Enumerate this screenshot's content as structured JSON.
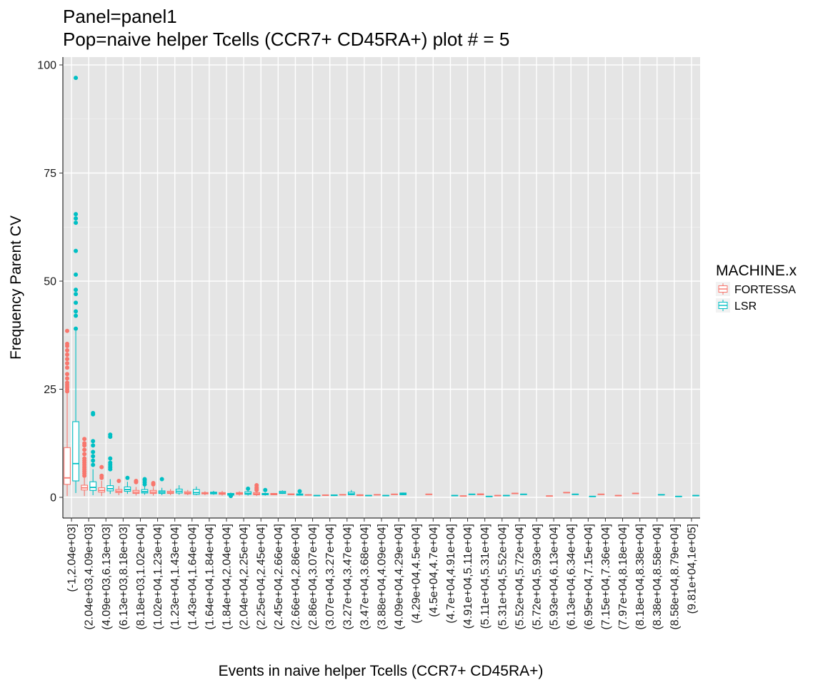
{
  "chart_data": {
    "type": "box",
    "title_line1": "Panel=panel1",
    "title_line2": "Pop=naive helper Tcells (CCR7+ CD45RA+) plot # = 5",
    "xlabel": "Events in naive helper Tcells (CCR7+ CD45RA+)",
    "ylabel": "Frequency Parent CV",
    "ylim": [
      -4.5,
      102
    ],
    "yticks": [
      0,
      25,
      50,
      75,
      100
    ],
    "grid": true,
    "legend": {
      "title": "MACHINE.x",
      "position": "right",
      "entries": [
        {
          "name": "FORTESSA",
          "color": "#F8766D"
        },
        {
          "name": "LSR",
          "color": "#00BFC4"
        }
      ]
    },
    "categories": [
      "(-1,2.04e+03]",
      "(2.04e+03,4.09e+03]",
      "(4.09e+03,6.13e+03]",
      "(6.13e+03,8.18e+03]",
      "(8.18e+03,1.02e+04]",
      "(1.02e+04,1.23e+04]",
      "(1.23e+04,1.43e+04]",
      "(1.43e+04,1.64e+04]",
      "(1.64e+04,1.84e+04]",
      "(1.84e+04,2.04e+04]",
      "(2.04e+04,2.25e+04]",
      "(2.25e+04,2.45e+04]",
      "(2.45e+04,2.66e+04]",
      "(2.66e+04,2.86e+04]",
      "(2.86e+04,3.07e+04]",
      "(3.07e+04,3.27e+04]",
      "(3.27e+04,3.47e+04]",
      "(3.47e+04,3.68e+04]",
      "(3.88e+04,4.09e+04]",
      "(4.09e+04,4.29e+04]",
      "(4.29e+04,4.5e+04]",
      "(4.5e+04,4.7e+04]",
      "(4.7e+04,4.91e+04]",
      "(4.91e+04,5.11e+04]",
      "(5.11e+04,5.31e+04]",
      "(5.31e+04,5.52e+04]",
      "(5.52e+04,5.72e+04]",
      "(5.72e+04,5.93e+04]",
      "(5.93e+04,6.13e+04]",
      "(6.13e+04,6.34e+04]",
      "(6.95e+04,7.15e+04]",
      "(7.15e+04,7.36e+04]",
      "(7.97e+04,8.18e+04]",
      "(8.18e+04,8.38e+04]",
      "(8.38e+04,8.58e+04]",
      "(8.58e+04,8.79e+04]",
      "(9.81e+04,1e+05]"
    ],
    "boxes": [
      {
        "cat": 0,
        "series": "FORTESSA",
        "min": 0.3,
        "q1": 3.0,
        "median": 4.5,
        "q3": 11.5,
        "max": 24.0,
        "outliers": [
          24.5,
          25,
          25.5,
          26,
          26.5,
          27.5,
          28.5,
          30,
          31,
          32,
          33,
          34,
          35,
          35.5,
          38.5
        ]
      },
      {
        "cat": 0,
        "series": "LSR",
        "min": 1.0,
        "q1": 3.8,
        "median": 7.8,
        "q3": 17.5,
        "max": 38.5,
        "outliers": [
          39,
          42,
          43,
          45,
          47,
          48,
          51.5,
          57,
          63.5,
          64.5,
          65.5,
          97
        ]
      },
      {
        "cat": 1,
        "series": "FORTESSA",
        "min": 0.3,
        "q1": 1.7,
        "median": 2.2,
        "q3": 2.8,
        "max": 4.5,
        "outliers": [
          5,
          5.5,
          6,
          6.5,
          7,
          7.5,
          8,
          8.5,
          9,
          10,
          11,
          12,
          12.5,
          13.5
        ]
      },
      {
        "cat": 1,
        "series": "LSR",
        "min": 0.5,
        "q1": 1.6,
        "median": 2.3,
        "q3": 3.6,
        "max": 6.5,
        "outliers": [
          7.5,
          8.5,
          9.5,
          10.5,
          12,
          13,
          19.2,
          19.5
        ]
      },
      {
        "cat": 2,
        "series": "FORTESSA",
        "min": 0.3,
        "q1": 1.2,
        "median": 1.6,
        "q3": 2.2,
        "max": 3.8,
        "outliers": [
          4.5,
          5,
          7
        ]
      },
      {
        "cat": 2,
        "series": "LSR",
        "min": 0.8,
        "q1": 1.5,
        "median": 2.0,
        "q3": 2.7,
        "max": 4.2,
        "outliers": [
          6.5,
          7,
          7.5,
          8,
          9,
          14,
          14.5
        ]
      },
      {
        "cat": 3,
        "series": "FORTESSA",
        "min": 0.5,
        "q1": 1.1,
        "median": 1.4,
        "q3": 1.8,
        "max": 2.6,
        "outliers": [
          3.8
        ]
      },
      {
        "cat": 3,
        "series": "LSR",
        "min": 0.8,
        "q1": 1.4,
        "median": 1.8,
        "q3": 2.4,
        "max": 3.6,
        "outliers": [
          4.5
        ]
      },
      {
        "cat": 4,
        "series": "FORTESSA",
        "min": 0.4,
        "q1": 0.9,
        "median": 1.2,
        "q3": 1.6,
        "max": 2.4,
        "outliers": [
          3.5,
          3.8
        ]
      },
      {
        "cat": 4,
        "series": "LSR",
        "min": 0.6,
        "q1": 1.0,
        "median": 1.3,
        "q3": 1.8,
        "max": 2.6,
        "outliers": [
          3,
          3.5,
          4,
          4.2
        ]
      },
      {
        "cat": 5,
        "series": "FORTESSA",
        "min": 0.4,
        "q1": 0.9,
        "median": 1.2,
        "q3": 1.6,
        "max": 2.4,
        "outliers": [
          3.0,
          3.3
        ]
      },
      {
        "cat": 5,
        "series": "LSR",
        "min": 0.5,
        "q1": 0.9,
        "median": 1.2,
        "q3": 1.5,
        "max": 2.2,
        "outliers": [
          4.2
        ]
      },
      {
        "cat": 6,
        "series": "FORTESSA",
        "min": 0.5,
        "q1": 0.9,
        "median": 1.1,
        "q3": 1.4,
        "max": 1.9,
        "outliers": []
      },
      {
        "cat": 6,
        "series": "LSR",
        "min": 0.6,
        "q1": 1.0,
        "median": 1.4,
        "q3": 1.9,
        "max": 2.8,
        "outliers": []
      },
      {
        "cat": 7,
        "series": "FORTESSA",
        "min": 0.5,
        "q1": 0.8,
        "median": 1.0,
        "q3": 1.3,
        "max": 1.7,
        "outliers": []
      },
      {
        "cat": 7,
        "series": "LSR",
        "min": 0.5,
        "q1": 0.7,
        "median": 1.1,
        "q3": 1.8,
        "max": 2.5,
        "outliers": []
      },
      {
        "cat": 8,
        "series": "FORTESSA",
        "min": 0.5,
        "q1": 0.8,
        "median": 0.9,
        "q3": 1.1,
        "max": 1.4,
        "outliers": []
      },
      {
        "cat": 8,
        "series": "LSR",
        "min": 0.6,
        "q1": 0.8,
        "median": 1.0,
        "q3": 1.2,
        "max": 1.5,
        "outliers": []
      },
      {
        "cat": 9,
        "series": "FORTESSA",
        "min": 0.4,
        "q1": 0.7,
        "median": 0.9,
        "q3": 1.1,
        "max": 1.5,
        "outliers": []
      },
      {
        "cat": 9,
        "series": "LSR",
        "min": 0.3,
        "q1": 0.5,
        "median": 0.7,
        "q3": 0.9,
        "max": 1.1,
        "outliers": [
          0.3
        ]
      },
      {
        "cat": 10,
        "series": "FORTESSA",
        "min": 0.4,
        "q1": 0.7,
        "median": 0.9,
        "q3": 1.1,
        "max": 1.4,
        "outliers": []
      },
      {
        "cat": 10,
        "series": "LSR",
        "min": 0.4,
        "q1": 0.7,
        "median": 0.9,
        "q3": 1.3,
        "max": 1.8,
        "outliers": [
          2.0
        ]
      },
      {
        "cat": 11,
        "series": "FORTESSA",
        "min": 0.3,
        "q1": 0.6,
        "median": 0.8,
        "q3": 1.1,
        "max": 1.4,
        "outliers": [
          1.7,
          2.0,
          2.3,
          2.8
        ]
      },
      {
        "cat": 11,
        "series": "LSR",
        "min": 0.4,
        "q1": 0.6,
        "median": 0.7,
        "q3": 0.9,
        "max": 1.1,
        "outliers": [
          1.7
        ]
      },
      {
        "cat": 12,
        "series": "FORTESSA",
        "min": 0.5,
        "q1": 0.6,
        "median": 0.7,
        "q3": 0.9,
        "max": 1.0,
        "outliers": []
      },
      {
        "cat": 12,
        "series": "LSR",
        "min": 0.8,
        "q1": 0.9,
        "median": 1.1,
        "q3": 1.4,
        "max": 1.6,
        "outliers": []
      },
      {
        "cat": 13,
        "series": "FORTESSA",
        "min": 0.5,
        "q1": 0.6,
        "median": 0.7,
        "q3": 0.8,
        "max": 0.9,
        "outliers": []
      },
      {
        "cat": 13,
        "series": "LSR",
        "min": 0.4,
        "q1": 0.5,
        "median": 0.6,
        "q3": 0.8,
        "max": 1.0,
        "outliers": [
          1.4
        ]
      },
      {
        "cat": 14,
        "series": "FORTESSA",
        "min": 0.4,
        "q1": 0.5,
        "median": 0.55,
        "q3": 0.6,
        "max": 0.7,
        "outliers": []
      },
      {
        "cat": 14,
        "series": "LSR",
        "min": 0.3,
        "q1": 0.35,
        "median": 0.4,
        "q3": 0.45,
        "max": 0.5,
        "outliers": []
      },
      {
        "cat": 15,
        "series": "FORTESSA",
        "min": 0.4,
        "q1": 0.45,
        "median": 0.5,
        "q3": 0.55,
        "max": 0.6,
        "outliers": []
      },
      {
        "cat": 15,
        "series": "LSR",
        "min": 0.3,
        "q1": 0.4,
        "median": 0.5,
        "q3": 0.55,
        "max": 0.6,
        "outliers": []
      },
      {
        "cat": 16,
        "series": "FORTESSA",
        "min": 0.5,
        "q1": 0.55,
        "median": 0.6,
        "q3": 0.65,
        "max": 0.7,
        "outliers": []
      },
      {
        "cat": 16,
        "series": "LSR",
        "min": 0.5,
        "q1": 0.6,
        "median": 0.8,
        "q3": 1.2,
        "max": 1.7,
        "outliers": []
      },
      {
        "cat": 17,
        "series": "FORTESSA",
        "min": 0.3,
        "q1": 0.4,
        "median": 0.5,
        "q3": 0.6,
        "max": 0.7,
        "outliers": []
      },
      {
        "cat": 17,
        "series": "LSR",
        "min": 0.3,
        "q1": 0.35,
        "median": 0.4,
        "q3": 0.45,
        "max": 0.5,
        "outliers": []
      },
      {
        "cat": 18,
        "series": "FORTESSA",
        "min": 0.5,
        "q1": 0.55,
        "median": 0.6,
        "q3": 0.65,
        "max": 0.7,
        "outliers": []
      },
      {
        "cat": 18,
        "series": "LSR",
        "min": 0.3,
        "q1": 0.35,
        "median": 0.4,
        "q3": 0.45,
        "max": 0.5,
        "outliers": []
      },
      {
        "cat": 19,
        "series": "FORTESSA",
        "min": 0.6,
        "q1": 0.65,
        "median": 0.7,
        "q3": 0.75,
        "max": 0.8,
        "outliers": []
      },
      {
        "cat": 19,
        "series": "LSR",
        "min": 0.5,
        "q1": 0.6,
        "median": 0.8,
        "q3": 1.0,
        "max": 1.1,
        "outliers": []
      },
      {
        "cat": 21,
        "series": "FORTESSA",
        "min": 0.6,
        "q1": 0.65,
        "median": 0.7,
        "q3": 0.75,
        "max": 0.8,
        "outliers": []
      },
      {
        "cat": 22,
        "series": "LSR",
        "min": 0.3,
        "q1": 0.35,
        "median": 0.4,
        "q3": 0.45,
        "max": 0.5,
        "outliers": []
      },
      {
        "cat": 23,
        "series": "FORTESSA",
        "min": 0.2,
        "q1": 0.25,
        "median": 0.3,
        "q3": 0.35,
        "max": 0.4,
        "outliers": []
      },
      {
        "cat": 23,
        "series": "LSR",
        "min": 0.6,
        "q1": 0.65,
        "median": 0.7,
        "q3": 0.75,
        "max": 0.8,
        "outliers": []
      },
      {
        "cat": 24,
        "series": "FORTESSA",
        "min": 0.5,
        "q1": 0.6,
        "median": 0.7,
        "q3": 0.8,
        "max": 0.9,
        "outliers": []
      },
      {
        "cat": 24,
        "series": "LSR",
        "min": 0.1,
        "q1": 0.15,
        "median": 0.2,
        "q3": 0.25,
        "max": 0.3,
        "outliers": []
      },
      {
        "cat": 25,
        "series": "FORTESSA",
        "min": 0.3,
        "q1": 0.35,
        "median": 0.4,
        "q3": 0.45,
        "max": 0.5,
        "outliers": []
      },
      {
        "cat": 25,
        "series": "LSR",
        "min": 0.3,
        "q1": 0.35,
        "median": 0.4,
        "q3": 0.45,
        "max": 0.5,
        "outliers": []
      },
      {
        "cat": 26,
        "series": "FORTESSA",
        "min": 0.8,
        "q1": 0.85,
        "median": 0.9,
        "q3": 0.95,
        "max": 1.0,
        "outliers": []
      },
      {
        "cat": 26,
        "series": "LSR",
        "min": 0.6,
        "q1": 0.65,
        "median": 0.7,
        "q3": 0.75,
        "max": 0.8,
        "outliers": []
      },
      {
        "cat": 28,
        "series": "FORTESSA",
        "min": 0.2,
        "q1": 0.25,
        "median": 0.3,
        "q3": 0.35,
        "max": 0.4,
        "outliers": []
      },
      {
        "cat": 29,
        "series": "FORTESSA",
        "min": 1.0,
        "q1": 1.05,
        "median": 1.1,
        "q3": 1.15,
        "max": 1.2,
        "outliers": []
      },
      {
        "cat": 29,
        "series": "LSR",
        "min": 0.6,
        "q1": 0.65,
        "median": 0.7,
        "q3": 0.75,
        "max": 0.8,
        "outliers": []
      },
      {
        "cat": 30,
        "series": "LSR",
        "min": 0.1,
        "q1": 0.15,
        "median": 0.2,
        "q3": 0.25,
        "max": 0.3,
        "outliers": []
      },
      {
        "cat": 31,
        "series": "FORTESSA",
        "min": 0.6,
        "q1": 0.65,
        "median": 0.7,
        "q3": 0.75,
        "max": 0.8,
        "outliers": []
      },
      {
        "cat": 32,
        "series": "FORTESSA",
        "min": 0.3,
        "q1": 0.35,
        "median": 0.4,
        "q3": 0.45,
        "max": 0.5,
        "outliers": []
      },
      {
        "cat": 33,
        "series": "FORTESSA",
        "min": 0.8,
        "q1": 0.85,
        "median": 0.9,
        "q3": 0.95,
        "max": 1.0,
        "outliers": []
      },
      {
        "cat": 34,
        "series": "LSR",
        "min": 0.5,
        "q1": 0.55,
        "median": 0.6,
        "q3": 0.65,
        "max": 0.7,
        "outliers": []
      },
      {
        "cat": 35,
        "series": "LSR",
        "min": 0.1,
        "q1": 0.15,
        "median": 0.2,
        "q3": 0.25,
        "max": 0.3,
        "outliers": []
      },
      {
        "cat": 36,
        "series": "LSR",
        "min": 0.3,
        "q1": 0.35,
        "median": 0.4,
        "q3": 0.45,
        "max": 0.5,
        "outliers": []
      }
    ]
  }
}
